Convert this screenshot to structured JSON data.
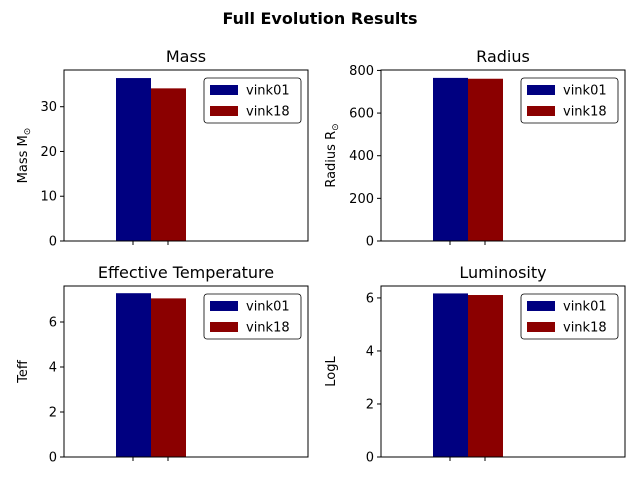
{
  "figure": {
    "suptitle": "Full Evolution Results"
  },
  "chart_data": [
    {
      "type": "bar",
      "title": "Mass",
      "ylabel": "Mass M",
      "ylabel_sub": "⊙",
      "ylim": [
        0,
        38.2
      ],
      "yticks": [
        0,
        10,
        20,
        30
      ],
      "ytick_labels": [
        "0",
        "10",
        "20",
        "30"
      ],
      "categories": [
        ""
      ],
      "legend_position": "top-right",
      "series": [
        {
          "name": "vink01",
          "values": [
            36.4
          ],
          "color": "#000080"
        },
        {
          "name": "vink18",
          "values": [
            34.1
          ],
          "color": "#8b0000"
        }
      ]
    },
    {
      "type": "bar",
      "title": "Radius",
      "ylabel": "Radius R",
      "ylabel_sub": "⊙",
      "ylim": [
        0,
        802
      ],
      "yticks": [
        0,
        200,
        400,
        600,
        800
      ],
      "ytick_labels": [
        "0",
        "200",
        "400",
        "600",
        "800"
      ],
      "categories": [
        ""
      ],
      "legend_position": "top-right",
      "series": [
        {
          "name": "vink01",
          "values": [
            765
          ],
          "color": "#000080"
        },
        {
          "name": "vink18",
          "values": [
            761
          ],
          "color": "#8b0000"
        }
      ]
    },
    {
      "type": "bar",
      "title": "Effective Temperature",
      "ylabel": "Teff",
      "ylabel_sub": "",
      "ylim": [
        0,
        7.6
      ],
      "yticks": [
        0,
        2,
        4,
        6
      ],
      "ytick_labels": [
        "0",
        "2",
        "4",
        "6"
      ],
      "categories": [
        ""
      ],
      "legend_position": "top-right",
      "series": [
        {
          "name": "vink01",
          "values": [
            7.28
          ],
          "color": "#000080"
        },
        {
          "name": "vink18",
          "values": [
            7.05
          ],
          "color": "#8b0000"
        }
      ]
    },
    {
      "type": "bar",
      "title": "Luminosity",
      "ylabel": "LogL",
      "ylabel_sub": "",
      "ylim": [
        0,
        6.45
      ],
      "yticks": [
        0,
        2,
        4,
        6
      ],
      "ytick_labels": [
        "0",
        "2",
        "4",
        "6"
      ],
      "categories": [
        ""
      ],
      "legend_position": "top-right",
      "series": [
        {
          "name": "vink01",
          "values": [
            6.17
          ],
          "color": "#000080"
        },
        {
          "name": "vink18",
          "values": [
            6.11
          ],
          "color": "#8b0000"
        }
      ]
    }
  ]
}
